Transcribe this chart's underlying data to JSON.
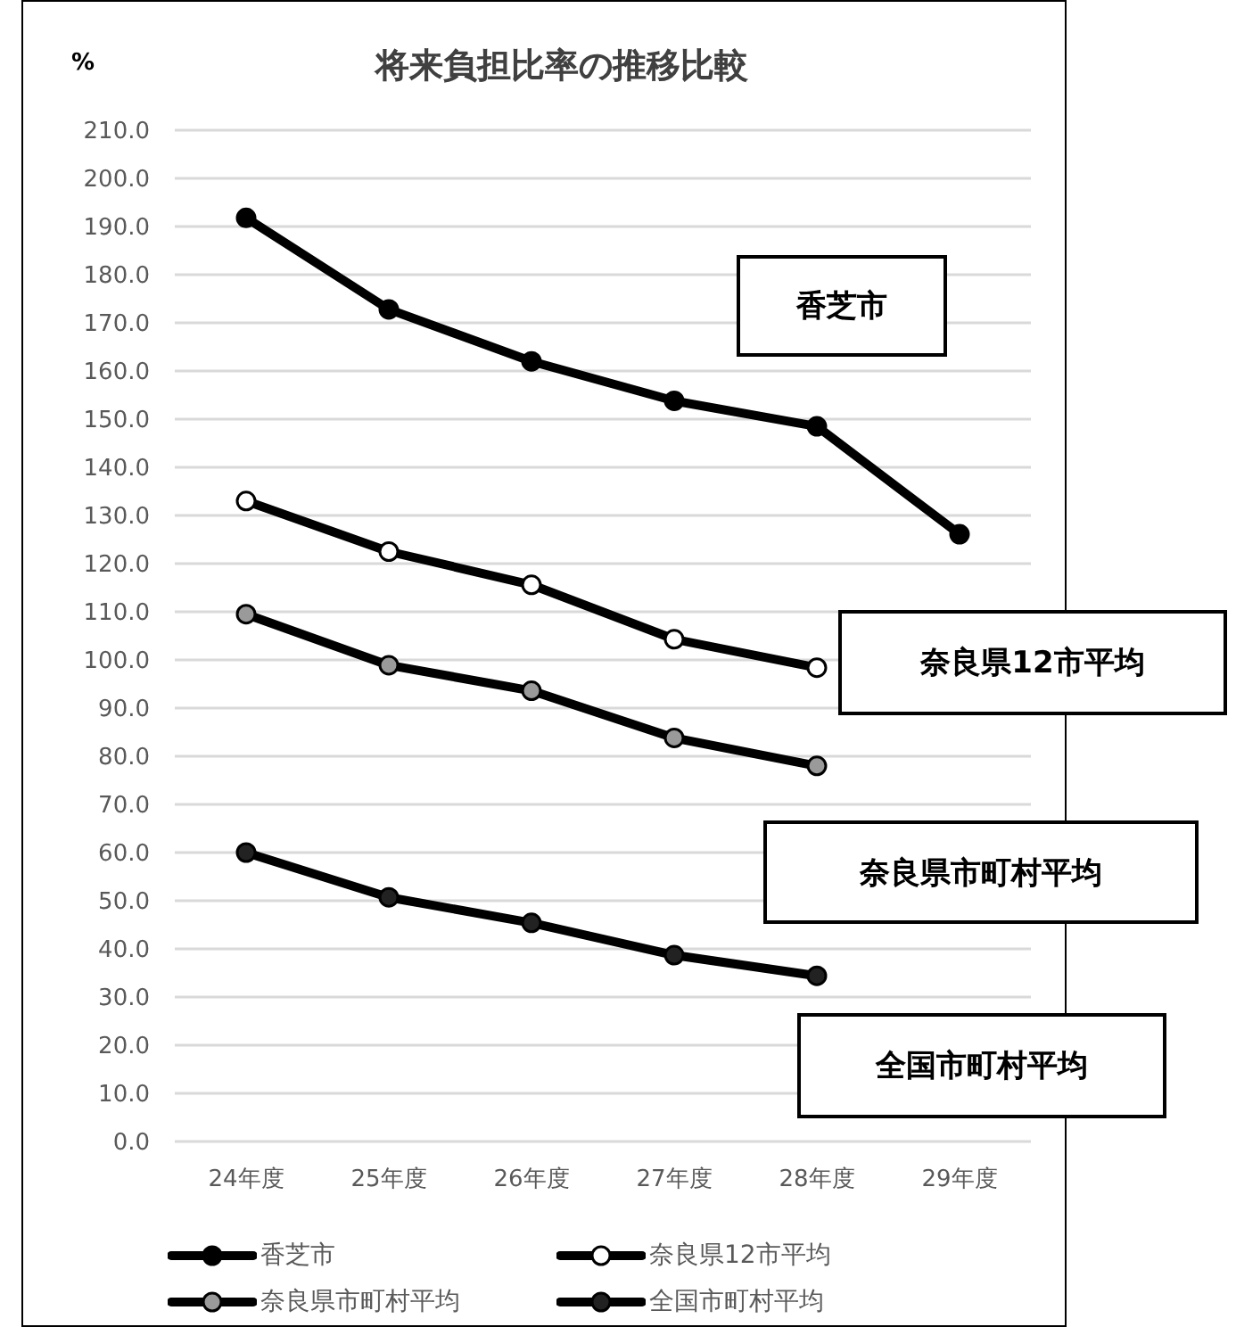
{
  "chart_data": {
    "type": "line",
    "title": "将来負担比率の推移比較",
    "ylabel": "%",
    "categories": [
      "24年度",
      "25年度",
      "26年度",
      "27年度",
      "28年度",
      "29年度"
    ],
    "series": [
      {
        "name": "香芝市",
        "color": "#000000",
        "values": [
          191.8,
          172.8,
          162.0,
          153.8,
          148.5,
          126.1
        ]
      },
      {
        "name": "奈良県12市平均",
        "color": "#000000",
        "values": [
          133.0,
          122.5,
          115.6,
          104.3,
          98.4,
          null
        ]
      },
      {
        "name": "奈良県市町村平均",
        "color": "#000000",
        "values": [
          109.5,
          98.9,
          93.6,
          83.8,
          78.0,
          null
        ]
      },
      {
        "name": "全国市町村平均",
        "color": "#000000",
        "values": [
          60.0,
          50.7,
          45.4,
          38.7,
          34.4,
          null
        ]
      }
    ],
    "annotations": [
      "香芝市",
      "奈良県12市平均",
      "奈良県市町村平均",
      "全国市町村平均"
    ],
    "ylim": [
      0,
      210
    ],
    "yticks": [
      {
        "value": 0,
        "label": "0.0"
      },
      {
        "value": 10,
        "label": "10.0"
      },
      {
        "value": 20,
        "label": "20.0"
      },
      {
        "value": 30,
        "label": "30.0"
      },
      {
        "value": 40,
        "label": "40.0"
      },
      {
        "value": 50,
        "label": "50.0"
      },
      {
        "value": 60,
        "label": "60.0"
      },
      {
        "value": 70,
        "label": "70.0"
      },
      {
        "value": 80,
        "label": "80.0"
      },
      {
        "value": 90,
        "label": "90.0"
      },
      {
        "value": 100,
        "label": "100.0"
      },
      {
        "value": 110,
        "label": "110.0"
      },
      {
        "value": 120,
        "label": "120.0"
      },
      {
        "value": 130,
        "label": "130.0"
      },
      {
        "value": 140,
        "label": "140.0"
      },
      {
        "value": 150,
        "label": "150.0"
      },
      {
        "value": 160,
        "label": "160.0"
      },
      {
        "value": 170,
        "label": "170.0"
      },
      {
        "value": 180,
        "label": "180.0"
      },
      {
        "value": 190,
        "label": "190.0"
      },
      {
        "value": 200,
        "label": "200.0"
      },
      {
        "value": 210,
        "label": "210.0"
      }
    ],
    "grid": "y",
    "legend": "bottom",
    "marker": "circle",
    "line_style": "solid"
  }
}
